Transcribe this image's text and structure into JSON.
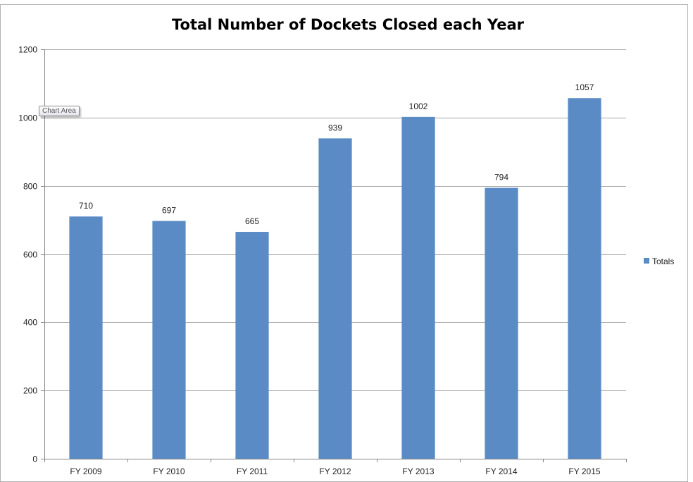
{
  "chart_data": {
    "type": "bar",
    "title": "Total Number of Dockets Closed each Year",
    "categories": [
      "FY 2009",
      "FY 2010",
      "FY 2011",
      "FY 2012",
      "FY 2013",
      "FY 2014",
      "FY 2015"
    ],
    "series": [
      {
        "name": "Totals",
        "values": [
          710,
          697,
          665,
          939,
          1002,
          794,
          1057
        ],
        "color": "#5b8bc5"
      }
    ],
    "ylim": [
      0,
      1200
    ],
    "yticks": [
      "0",
      "200",
      "400",
      "600",
      "800",
      "1000",
      "1200"
    ],
    "data_labels": [
      "710",
      "697",
      "665",
      "939",
      "1002",
      "794",
      "1057"
    ],
    "grid": true,
    "legend_position": "right"
  },
  "tooltip": {
    "text": "Chart Area"
  },
  "colors": {
    "gridline": "#a6a6a6",
    "axis": "#868686",
    "frame": "#b3b3b3"
  }
}
